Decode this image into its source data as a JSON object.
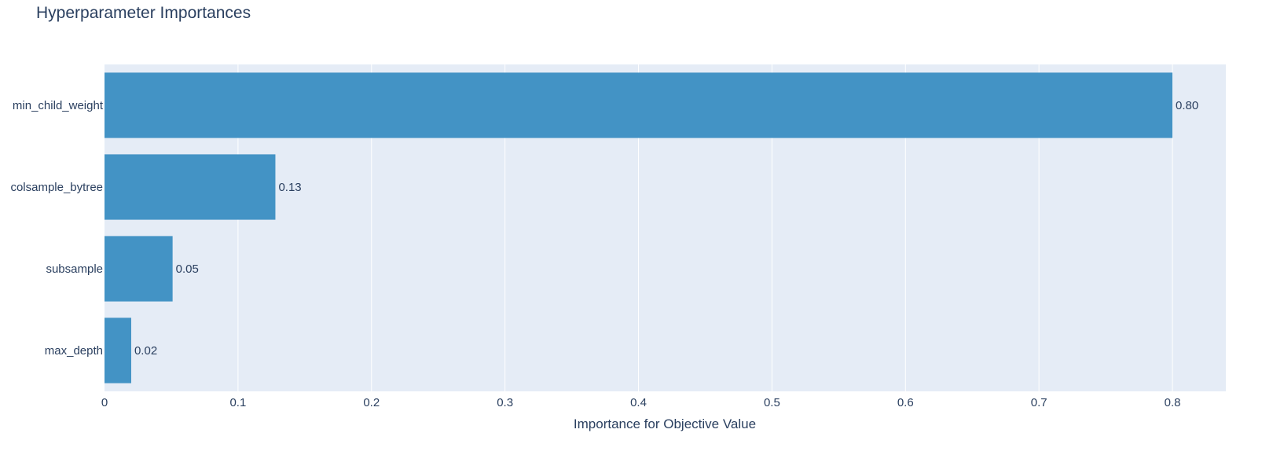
{
  "chart_data": {
    "type": "bar",
    "orientation": "horizontal",
    "title": "Hyperparameter Importances",
    "xlabel": "Importance for Objective Value",
    "ylabel": "",
    "xlim": [
      0,
      0.84
    ],
    "xticks": [
      0,
      0.1,
      0.2,
      0.3,
      0.4,
      0.5,
      0.6,
      0.7,
      0.8
    ],
    "xtick_labels": [
      "0",
      "0.1",
      "0.2",
      "0.3",
      "0.4",
      "0.5",
      "0.6",
      "0.7",
      "0.8"
    ],
    "grid": true,
    "categories": [
      "min_child_weight",
      "colsample_bytree",
      "subsample",
      "max_depth"
    ],
    "values": [
      0.8,
      0.128,
      0.051,
      0.02
    ],
    "data_labels": [
      "0.80",
      "0.13",
      "0.05",
      "0.02"
    ],
    "colors": {
      "bar": "#4393c5",
      "plot_background": "#e5ecf6",
      "gridline": "#ffffff",
      "text": "#2a3f5f"
    }
  }
}
